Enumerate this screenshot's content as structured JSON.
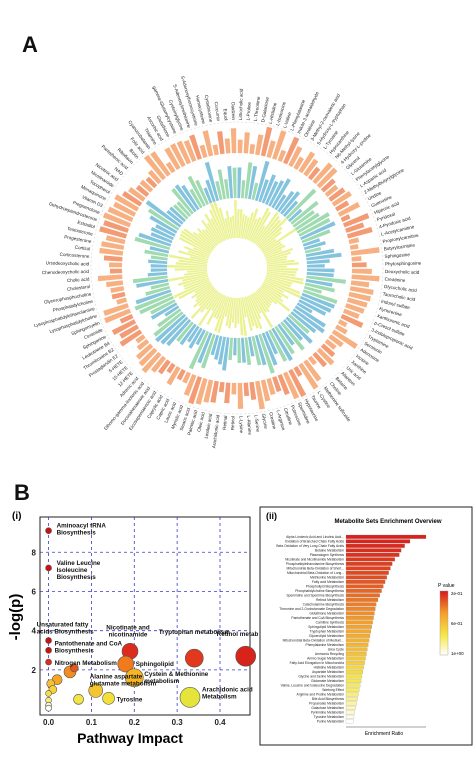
{
  "panel_a": {
    "letter": "A",
    "metabolites_right": [
      "Lithocholic acid",
      "L-Proline",
      "L-Threonine",
      "D-Galactose",
      "L-Histidine",
      "L-Isoleucine",
      "L-Valine",
      "L-Phenylalanine",
      "Indole-3-acetaldehyde",
      "Ornithine",
      "3-Methyl-2-oxovaleric acid",
      "5-Hydroxy-L-tryptophan",
      "L-Tyrosine",
      "Hypoxanthine",
      "N6-Methyl-lysine",
      "4-Hydroxy-L-proline",
      "Glycerol",
      "L-Glutamine",
      "Phenylacetylglycine",
      "L-Aspartic acid",
      "2-Methylbutyrylglycine",
      "Uridine",
      "Guanosine",
      "Hippuric acid",
      "Pyridoxal",
      "4-Pyridoxic acid",
      "L-Acetylcarnitine",
      "Propionylcarnitine",
      "Butyrylcarnitine",
      "Sphingosine",
      "Phytosphingosine",
      "Deoxycholic acid",
      "Creatinine",
      "Glycocholic acid",
      "Taurocholic acid",
      "Indoxyl sulfate",
      "Kynurenine",
      "Xanthurenic acid",
      "p-Cresol sulfate",
      "3-Indolepropionic acid",
      "Tryptamine",
      "Serotonin",
      "Adenosine",
      "Inosine",
      "Xanthine",
      "Uric acid",
      "Allantoin",
      "Betaine",
      "Choline",
      "Methionine sulfoxide",
      "L-Cystine",
      "Taurine",
      "Hypotaurine",
      "Spermidine",
      "Putrescine",
      "Citrulline",
      "L-Arginine",
      "Creatine",
      "Glycine",
      "L-Serine",
      "L-Alanine",
      "L-Lysine"
    ],
    "metabolites_left": [
      "Retinol",
      "Retinal",
      "Arachidonic acid",
      "Linoleic acid",
      "Oleic acid",
      "Palmitic acid",
      "Stearic acid",
      "Myristic acid",
      "Lauric acid",
      "Capric acid",
      "Caprylic acid",
      "Eicosapentaenoic acid",
      "Docosahexaenoic acid",
      "Dihomo-gamma-linolenic acid",
      "Adrenic acid",
      "12-HETE",
      "15-HETE",
      "5-HETE",
      "Prostaglandin E2",
      "Thromboxane B2",
      "Leukotriene B4",
      "Sphinganine",
      "Ceramide",
      "Sphingomyelin",
      "Lysophosphatidylcholine",
      "Lysophosphatidylethanolamine",
      "Phosphatidylcholine",
      "Glycerophosphocholine",
      "Cholesterol",
      "Cholic acid",
      "Chenodeoxycholic acid",
      "Ursodeoxycholic acid",
      "Corticosterone",
      "Cortisol",
      "Progesterone",
      "Testosterone",
      "Estradiol",
      "Dehydroepiandrosterone",
      "Pregnenolone",
      "Vitamin D3",
      "Menaquinone",
      "Tocopherol",
      "Nicotinamide",
      "Nicotinic acid",
      "NAD",
      "Pantothenic acid",
      "Riboflavin",
      "Biotin",
      "Folic acid",
      "Cyanocobalamin",
      "Thiamine",
      "Ascorbic acid",
      "Glutathione",
      "gamma-Glutamylcysteine",
      "Cysteinylglycine",
      "S-Adenosylmethionine",
      "S-Adenosylhomocysteine",
      "Homocysteine",
      "Cystathionine",
      "Curcumin",
      "Equol",
      "Daidzein"
    ]
  },
  "panel_b": {
    "letter": "B",
    "i": {
      "label": "(i)",
      "ylabel": "-log(p)",
      "xlabel": "Pathway Impact",
      "y_ticks": [
        "2",
        "4",
        "6",
        "8"
      ],
      "x_ticks": [
        "0.0",
        "0.1",
        "0.2",
        "0.3",
        "0.4"
      ]
    },
    "ii": {
      "label": "(ii)",
      "title": "Metabolite Sets Enrichment Overview",
      "xlabel": "Enrichment Ratio",
      "legend_title": "P value",
      "legend_ticks": [
        "2e-01",
        "6e-01",
        "1e+00"
      ]
    }
  },
  "chart_data": [
    {
      "type": "bar",
      "subtype": "radial",
      "series": [
        {
          "name": "",
          "color": "#f4a26b"
        },
        {
          "name": "",
          "color": "#8fd3a2"
        },
        {
          "name": "",
          "color": "#e6ef7a"
        },
        {
          "name": "",
          "color": "#6fb8d8"
        },
        {
          "name": "",
          "color": "#f08a5d"
        }
      ],
      "bar_count": 124
    },
    {
      "type": "scatter",
      "xlabel": "Pathway Impact",
      "ylabel": "-log(p)",
      "xlim": [
        -0.02,
        0.47
      ],
      "ylim": [
        -0.3,
        9.8
      ],
      "points": [
        {
          "label": "Aminoacyl tRNA Biosynthesis",
          "x": 0.0,
          "y": 9.1,
          "size": 3,
          "color": "#cc1111"
        },
        {
          "label": "Valine Leucine Isoleucine Biosynthesis",
          "x": 0.0,
          "y": 7.2,
          "size": 3,
          "color": "#cc1111"
        },
        {
          "label": "Unsaturated fatty acids Biosynthesis",
          "x": 0.0,
          "y": 3.5,
          "size": 3,
          "color": "#cc1111"
        },
        {
          "label": "Pantothenate and CoA Biosynthesis",
          "x": 0.0,
          "y": 3.0,
          "size": 3,
          "color": "#cc1111"
        },
        {
          "label": "Nitrogen Metabolism",
          "x": 0.0,
          "y": 2.4,
          "size": 3,
          "color": "#dd2b1d"
        },
        {
          "label": "Nicotinate and nicotinamide",
          "x": 0.19,
          "y": 2.95,
          "size": 8,
          "color": "#dd2b1d"
        },
        {
          "label": "Sphingolipid",
          "x": 0.18,
          "y": 2.3,
          "size": 8,
          "color": "#f07a1c"
        },
        {
          "label": "Tryptophan metabolism",
          "x": 0.34,
          "y": 2.6,
          "size": 9,
          "color": "#e2381e"
        },
        {
          "label": "Retinol metabolism",
          "x": 0.46,
          "y": 2.7,
          "size": 10,
          "color": "#d8231b"
        },
        {
          "label": "Cystein & Methionine metabolism",
          "x": 0.2,
          "y": 1.6,
          "size": 9,
          "color": "#f6b623"
        },
        {
          "label": "Alanine aspartate glutamate metabolism",
          "x": 0.11,
          "y": 0.95,
          "size": 7,
          "color": "#f4c530"
        },
        {
          "label": "Tyrosine",
          "x": 0.14,
          "y": 0.55,
          "size": 6,
          "color": "#f2df3a"
        },
        {
          "label": "Arachidonic acid Metabolism",
          "x": 0.33,
          "y": 0.6,
          "size": 10,
          "color": "#e4e43a"
        },
        {
          "label": "",
          "x": 0.05,
          "y": 1.9,
          "size": 6,
          "color": "#f28c22"
        },
        {
          "label": "",
          "x": 0.02,
          "y": 1.5,
          "size": 5,
          "color": "#f6a623"
        },
        {
          "label": "",
          "x": 0.005,
          "y": 1.3,
          "size": 4,
          "color": "#f8c032"
        },
        {
          "label": "",
          "x": 0.01,
          "y": 1.0,
          "size": 4,
          "color": "#f8d03a"
        },
        {
          "label": "",
          "x": 0.07,
          "y": 0.5,
          "size": 5,
          "color": "#f1e645"
        },
        {
          "label": "",
          "x": 0.0,
          "y": 0.8,
          "size": 3,
          "color": "#f5dd48"
        },
        {
          "label": "",
          "x": 0.0,
          "y": 0.45,
          "size": 3,
          "color": "#f5ef7a"
        },
        {
          "label": "",
          "x": 0.0,
          "y": 0.2,
          "size": 3,
          "color": "#fbf7c0"
        },
        {
          "label": "",
          "x": 0.0,
          "y": 0.05,
          "size": 3,
          "color": "#ffffff"
        },
        {
          "label": "",
          "x": 0.06,
          "y": 2.1,
          "size": 4,
          "color": "#e4561c"
        }
      ]
    },
    {
      "type": "bar",
      "orientation": "horizontal",
      "title": "Metabolite Sets Enrichment Overview",
      "xlabel": "Enrichment Ratio",
      "categories": [
        "Alpha Linolenic Acid and Linoleic Acid...",
        "Oxidation of Branched Chain Fatty Acids",
        "Beta Oxidation of Very Long Chain Fatty Acids",
        "Betaine Metabolism",
        "Plasmalogen Synthesis",
        "Nicotinate and Nicotinamide Metabolism",
        "Phosphatidylethanolamine Biosynthesis",
        "Mitochondrial Beta-Oxidation of Short...",
        "Mitochondrial Beta-Oxidation of Long...",
        "Methionine Metabolism",
        "Fatty acid Metabolism",
        "Phospholipid Biosynthesis",
        "Phosphatidylcholine Biosynthesis",
        "Spermidine and Spermine Biosynthesis",
        "Retinol Metabolism",
        "Catecholamine Biosynthesis",
        "Threonine and 2-Oxobutanoate Degradation",
        "Glutathione Metabolism",
        "Pantothenate and CoA Biosynthesis",
        "Carnitine Synthesis",
        "Sphingolipid Metabolism",
        "Tryptophan Metabolism",
        "Glycerolipid Metabolism",
        "Mitochondrial Beta-Oxidation of Medium...",
        "Phenylalanine Metabolism",
        "Urea Cycle",
        "Ammonia Recycling",
        "Amino Sugar Metabolism",
        "Fatty Acid Elongation In Mitochondria",
        "Histidine Metabolism",
        "Aspartate Metabolism",
        "Glycine and Serine Metabolism",
        "Glutamate Metabolism",
        "Valine, Leucine and Isoleucine Degradation",
        "Warburg Effect",
        "Arginine and Proline Metabolism",
        "Bile Acid Biosynthesis",
        "Propanoate Metabolism",
        "Galactose Metabolism",
        "Pyrimidine Metabolism",
        "Tyrosine Metabolism",
        "Purine Metabolism"
      ],
      "values": [
        90,
        72,
        66,
        62,
        60,
        55,
        52,
        50,
        48,
        46,
        44,
        42,
        40,
        38,
        36,
        34,
        33,
        32,
        31,
        30,
        29,
        28,
        27,
        26,
        25,
        24,
        23,
        22,
        21,
        20,
        19,
        18,
        17,
        16,
        15,
        14,
        13,
        12,
        11,
        10,
        9,
        8
      ],
      "p_values": [
        0.02,
        0.03,
        0.04,
        0.05,
        0.06,
        0.08,
        0.09,
        0.1,
        0.12,
        0.13,
        0.15,
        0.17,
        0.19,
        0.21,
        0.23,
        0.25,
        0.27,
        0.29,
        0.31,
        0.33,
        0.35,
        0.37,
        0.39,
        0.41,
        0.43,
        0.46,
        0.49,
        0.52,
        0.55,
        0.58,
        0.61,
        0.64,
        0.67,
        0.7,
        0.73,
        0.76,
        0.8,
        0.84,
        0.88,
        0.92,
        0.96,
        1.0
      ],
      "colorscale": [
        "#d7191c",
        "#f4a02a",
        "#f5e84a",
        "#ffffff"
      ]
    }
  ]
}
